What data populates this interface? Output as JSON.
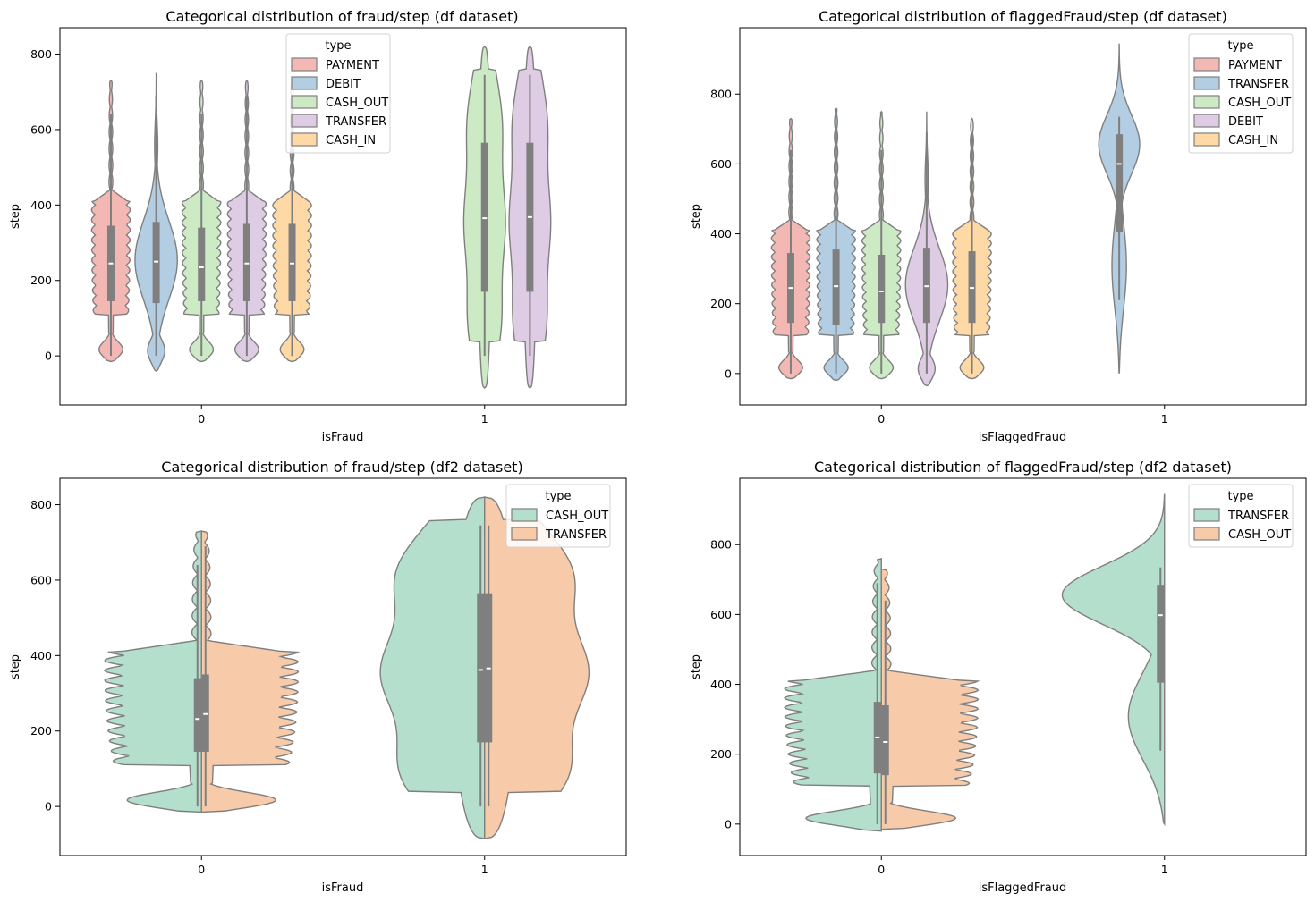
{
  "chart_data": [
    {
      "type": "violin",
      "title": "Categorical distribution of fraud/step (df dataset)",
      "xlabel": "isFraud",
      "ylabel": "step",
      "categories": [
        "0",
        "1"
      ],
      "ylim": [
        -130,
        870
      ],
      "yticks": [
        0,
        200,
        400,
        600,
        800
      ],
      "split": false,
      "legend": {
        "title": "type",
        "placement": "top-center",
        "entries": [
          {
            "name": "PAYMENT",
            "color": "#f4b8b4"
          },
          {
            "name": "DEBIT",
            "color": "#b3cde3"
          },
          {
            "name": "CASH_OUT",
            "color": "#ccebc5"
          },
          {
            "name": "TRANSFER",
            "color": "#decbe4"
          },
          {
            "name": "CASH_IN",
            "color": "#fed9a6"
          }
        ]
      },
      "series": [
        {
          "name": "PAYMENT",
          "color": "#f4b8b4",
          "shape": "spiky",
          "violins": [
            {
              "category": "0",
              "ymin": -15,
              "ymax": 730,
              "q1": 145,
              "median": 245,
              "q3": 345,
              "wlo": 0,
              "whi": 640
            }
          ]
        },
        {
          "name": "DEBIT",
          "color": "#b3cde3",
          "shape": "smooth",
          "violins": [
            {
              "category": "0",
              "ymin": -40,
              "ymax": 750,
              "q1": 140,
              "median": 250,
              "q3": 355,
              "wlo": 0,
              "whi": 690
            }
          ]
        },
        {
          "name": "CASH_OUT",
          "color": "#ccebc5",
          "shape": "spiky",
          "violins": [
            {
              "category": "0",
              "ymin": -15,
              "ymax": 730,
              "q1": 145,
              "median": 235,
              "q3": 340,
              "wlo": 0,
              "whi": 640
            },
            {
              "category": "1",
              "ymin": -85,
              "ymax": 820,
              "q1": 170,
              "median": 365,
              "q3": 565,
              "wlo": 0,
              "whi": 745
            }
          ]
        },
        {
          "name": "TRANSFER",
          "color": "#decbe4",
          "shape": "spiky",
          "violins": [
            {
              "category": "0",
              "ymin": -15,
              "ymax": 730,
              "q1": 145,
              "median": 245,
              "q3": 350,
              "wlo": 0,
              "whi": 690
            },
            {
              "category": "1",
              "ymin": -85,
              "ymax": 820,
              "q1": 170,
              "median": 368,
              "q3": 565,
              "wlo": 0,
              "whi": 745
            }
          ]
        },
        {
          "name": "CASH_IN",
          "color": "#fed9a6",
          "shape": "spiky",
          "violins": [
            {
              "category": "0",
              "ymin": -15,
              "ymax": 730,
              "q1": 145,
              "median": 245,
              "q3": 350,
              "wlo": 0,
              "whi": 690
            }
          ]
        }
      ]
    },
    {
      "type": "violin",
      "title": "Categorical distribution of flaggedFraud/step (df dataset)",
      "xlabel": "isFlaggedFraud",
      "ylabel": "step",
      "categories": [
        "0",
        "1"
      ],
      "ylim": [
        -90,
        990
      ],
      "yticks": [
        0,
        200,
        400,
        600,
        800
      ],
      "split": false,
      "legend": {
        "title": "type",
        "placement": "top-right",
        "entries": [
          {
            "name": "PAYMENT",
            "color": "#f4b8b4"
          },
          {
            "name": "TRANSFER",
            "color": "#b3cde3"
          },
          {
            "name": "CASH_OUT",
            "color": "#ccebc5"
          },
          {
            "name": "DEBIT",
            "color": "#decbe4"
          },
          {
            "name": "CASH_IN",
            "color": "#fed9a6"
          }
        ]
      },
      "series": [
        {
          "name": "PAYMENT",
          "color": "#f4b8b4",
          "shape": "spiky",
          "violins": [
            {
              "category": "0",
              "ymin": -15,
              "ymax": 730,
              "q1": 145,
              "median": 245,
              "q3": 345,
              "wlo": 0,
              "whi": 640
            }
          ]
        },
        {
          "name": "TRANSFER",
          "color": "#b3cde3",
          "shape": "spiky",
          "violins": [
            {
              "category": "0",
              "ymin": -20,
              "ymax": 760,
              "q1": 140,
              "median": 250,
              "q3": 355,
              "wlo": 0,
              "whi": 690
            },
            {
              "category": "1",
              "ymin": 0,
              "ymax": 945,
              "q1": 405,
              "median": 600,
              "q3": 685,
              "wlo": 210,
              "whi": 735
            }
          ]
        },
        {
          "name": "CASH_OUT",
          "color": "#ccebc5",
          "shape": "spiky",
          "violins": [
            {
              "category": "0",
              "ymin": -15,
              "ymax": 750,
              "q1": 145,
              "median": 235,
              "q3": 340,
              "wlo": 0,
              "whi": 640
            }
          ]
        },
        {
          "name": "DEBIT",
          "color": "#decbe4",
          "shape": "smooth",
          "violins": [
            {
              "category": "0",
              "ymin": -35,
              "ymax": 750,
              "q1": 145,
              "median": 250,
              "q3": 360,
              "wlo": 0,
              "whi": 690
            }
          ]
        },
        {
          "name": "CASH_IN",
          "color": "#fed9a6",
          "shape": "spiky",
          "violins": [
            {
              "category": "0",
              "ymin": -15,
              "ymax": 730,
              "q1": 145,
              "median": 245,
              "q3": 350,
              "wlo": 0,
              "whi": 690
            }
          ]
        }
      ]
    },
    {
      "type": "violin",
      "title": "Categorical distribution of fraud/step (df2 dataset)",
      "xlabel": "isFraud",
      "ylabel": "step",
      "categories": [
        "0",
        "1"
      ],
      "ylim": [
        -130,
        870
      ],
      "yticks": [
        0,
        200,
        400,
        600,
        800
      ],
      "split": true,
      "legend": {
        "title": "type",
        "placement": "top-right",
        "entries": [
          {
            "name": "CASH_OUT",
            "color": "#b3dfcc"
          },
          {
            "name": "TRANSFER",
            "color": "#f7cbaa"
          }
        ]
      },
      "series": [
        {
          "name": "CASH_OUT",
          "color": "#b3dfcc",
          "violins": [
            {
              "category": "0",
              "ymin": -15,
              "ymax": 730,
              "q1": 145,
              "median": 232,
              "q3": 340,
              "wlo": 0,
              "whi": 640
            },
            {
              "category": "1",
              "ymin": -85,
              "ymax": 820,
              "q1": 170,
              "median": 362,
              "q3": 565,
              "wlo": 0,
              "whi": 745
            }
          ]
        },
        {
          "name": "TRANSFER",
          "color": "#f7cbaa",
          "violins": [
            {
              "category": "0",
              "ymin": -15,
              "ymax": 730,
              "q1": 145,
              "median": 245,
              "q3": 350,
              "wlo": 0,
              "whi": 690
            },
            {
              "category": "1",
              "ymin": -85,
              "ymax": 820,
              "q1": 170,
              "median": 366,
              "q3": 565,
              "wlo": 0,
              "whi": 745
            }
          ]
        }
      ]
    },
    {
      "type": "violin",
      "title": "Categorical distribution of flaggedFraud/step (df2 dataset)",
      "xlabel": "isFlaggedFraud",
      "ylabel": "step",
      "categories": [
        "0",
        "1"
      ],
      "ylim": [
        -90,
        990
      ],
      "yticks": [
        0,
        200,
        400,
        600,
        800
      ],
      "split": true,
      "legend": {
        "title": "type",
        "placement": "top-right",
        "entries": [
          {
            "name": "TRANSFER",
            "color": "#b3dfcc"
          },
          {
            "name": "CASH_OUT",
            "color": "#f7cbaa"
          }
        ]
      },
      "series": [
        {
          "name": "TRANSFER",
          "color": "#b3dfcc",
          "violins": [
            {
              "category": "0",
              "ymin": -20,
              "ymax": 760,
              "q1": 145,
              "median": 248,
              "q3": 350,
              "wlo": 0,
              "whi": 690
            },
            {
              "category": "1",
              "ymin": 0,
              "ymax": 945,
              "q1": 405,
              "median": 598,
              "q3": 685,
              "wlo": 210,
              "whi": 735
            }
          ]
        },
        {
          "name": "CASH_OUT",
          "color": "#f7cbaa",
          "violins": [
            {
              "category": "0",
              "ymin": -15,
              "ymax": 730,
              "q1": 140,
              "median": 235,
              "q3": 340,
              "wlo": 0,
              "whi": 640
            }
          ]
        }
      ]
    }
  ]
}
